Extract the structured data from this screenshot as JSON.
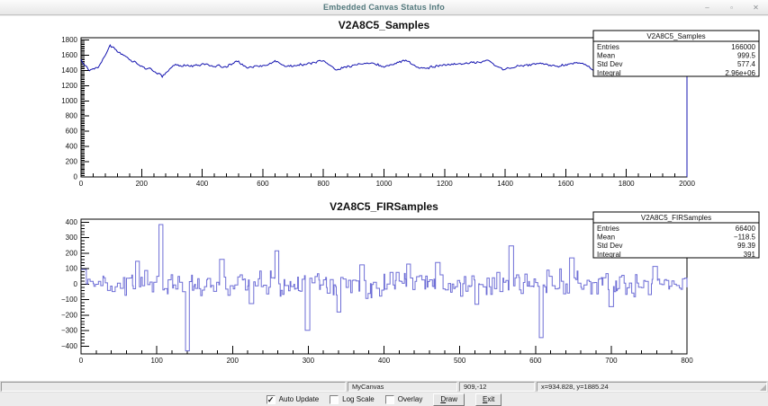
{
  "window": {
    "title": "Embedded Canvas Status Info",
    "buttons": {
      "minimize": "–",
      "maximize": "▫",
      "close": "✕"
    }
  },
  "status": {
    "canvas_name": "MyCanvas",
    "cursor_position": "909,-12",
    "coordinates": "x=934.828, y=1885.24"
  },
  "controls": {
    "auto_update": {
      "label": "Auto Update",
      "checked": true
    },
    "log_scale": {
      "label": "Log Scale",
      "checked": false
    },
    "overlay": {
      "label": "Overlay",
      "checked": false
    },
    "draw_button": {
      "key": "D",
      "rest": "raw"
    },
    "exit_button": {
      "key": "E",
      "rest": "xit"
    },
    "check_glyph": "✓"
  },
  "colors": {
    "top_line": "#1414b0",
    "bottom_line": "#6e6ed6",
    "frame": "#000000",
    "title_bar_text": "#53797d"
  },
  "chart_data": [
    {
      "type": "line",
      "title": "V2A8C5_Samples",
      "xlabel": "",
      "ylabel": "",
      "xlim": [
        0,
        2000
      ],
      "ylim_draw": [
        0,
        1830
      ],
      "grid": false,
      "legend": "none",
      "xticks": {
        "from": 0,
        "to": 2000,
        "major": 200,
        "minor": 5
      },
      "yticks": {
        "from": 0,
        "to": 1800,
        "major": 200,
        "minor": 10
      },
      "stats": {
        "title": "V2A8C5_Samples",
        "rows": [
          [
            "Entries",
            "166000"
          ],
          [
            "Mean",
            "999.5"
          ],
          [
            "Std Dev",
            "577.4"
          ],
          [
            "Integral",
            "2.96e+06"
          ]
        ]
      },
      "color": "#1414b0",
      "series": {
        "kind": "interp-noise",
        "seed": 13,
        "step": 4,
        "noise": 11,
        "walk": 8,
        "end_drop_to": 0,
        "keypoints": [
          [
            0,
            1548
          ],
          [
            28,
            1408
          ],
          [
            60,
            1470
          ],
          [
            95,
            1752
          ],
          [
            118,
            1680
          ],
          [
            145,
            1585
          ],
          [
            170,
            1530
          ],
          [
            205,
            1438
          ],
          [
            240,
            1395
          ],
          [
            268,
            1318
          ],
          [
            305,
            1462
          ],
          [
            360,
            1452
          ],
          [
            420,
            1478
          ],
          [
            480,
            1448
          ],
          [
            518,
            1512
          ],
          [
            545,
            1438
          ],
          [
            600,
            1468
          ],
          [
            645,
            1512
          ],
          [
            682,
            1448
          ],
          [
            740,
            1482
          ],
          [
            800,
            1522
          ],
          [
            838,
            1428
          ],
          [
            900,
            1468
          ],
          [
            958,
            1498
          ],
          [
            1000,
            1452
          ],
          [
            1078,
            1522
          ],
          [
            1115,
            1428
          ],
          [
            1180,
            1468
          ],
          [
            1250,
            1478
          ],
          [
            1310,
            1498
          ],
          [
            1345,
            1512
          ],
          [
            1390,
            1408
          ],
          [
            1450,
            1468
          ],
          [
            1520,
            1488
          ],
          [
            1570,
            1448
          ],
          [
            1650,
            1492
          ],
          [
            1700,
            1392
          ],
          [
            1755,
            1468
          ],
          [
            1850,
            1458
          ],
          [
            1950,
            1462
          ],
          [
            2000,
            1448
          ]
        ]
      }
    },
    {
      "type": "line",
      "title": "V2A8C5_FIRSamples",
      "xlabel": "",
      "ylabel": "",
      "xlim": [
        0,
        800
      ],
      "ylim_draw": [
        -450,
        420
      ],
      "grid": false,
      "legend": "none",
      "xticks": {
        "from": 0,
        "to": 800,
        "major": 100,
        "minor": 5
      },
      "yticks": {
        "from": -400,
        "to": 400,
        "major": 100,
        "minor": 5
      },
      "stats": {
        "title": "V2A8C5_FIRSamples",
        "rows": [
          [
            "Entries",
            "66400"
          ],
          [
            "Mean",
            "−118.5"
          ],
          [
            "Std Dev",
            "99.39"
          ],
          [
            "Integral",
            "391"
          ]
        ]
      },
      "color": "#6e6ed6",
      "series": {
        "kind": "steps",
        "seed": 99,
        "sigma": 55,
        "max_run": 4,
        "spikes": [
          [
            0,
            6,
            95
          ],
          [
            72,
            76,
            148
          ],
          [
            103,
            107,
            385
          ],
          [
            138,
            142,
            -430
          ],
          [
            183,
            188,
            160
          ],
          [
            222,
            227,
            -125
          ],
          [
            256,
            260,
            215
          ],
          [
            296,
            301,
            -298
          ],
          [
            338,
            342,
            -180
          ],
          [
            368,
            373,
            125
          ],
          [
            430,
            434,
            130
          ],
          [
            468,
            473,
            140
          ],
          [
            520,
            524,
            -130
          ],
          [
            565,
            570,
            248
          ],
          [
            605,
            609,
            -345
          ],
          [
            645,
            650,
            170
          ],
          [
            697,
            702,
            -145
          ],
          [
            755,
            760,
            115
          ]
        ]
      }
    }
  ]
}
